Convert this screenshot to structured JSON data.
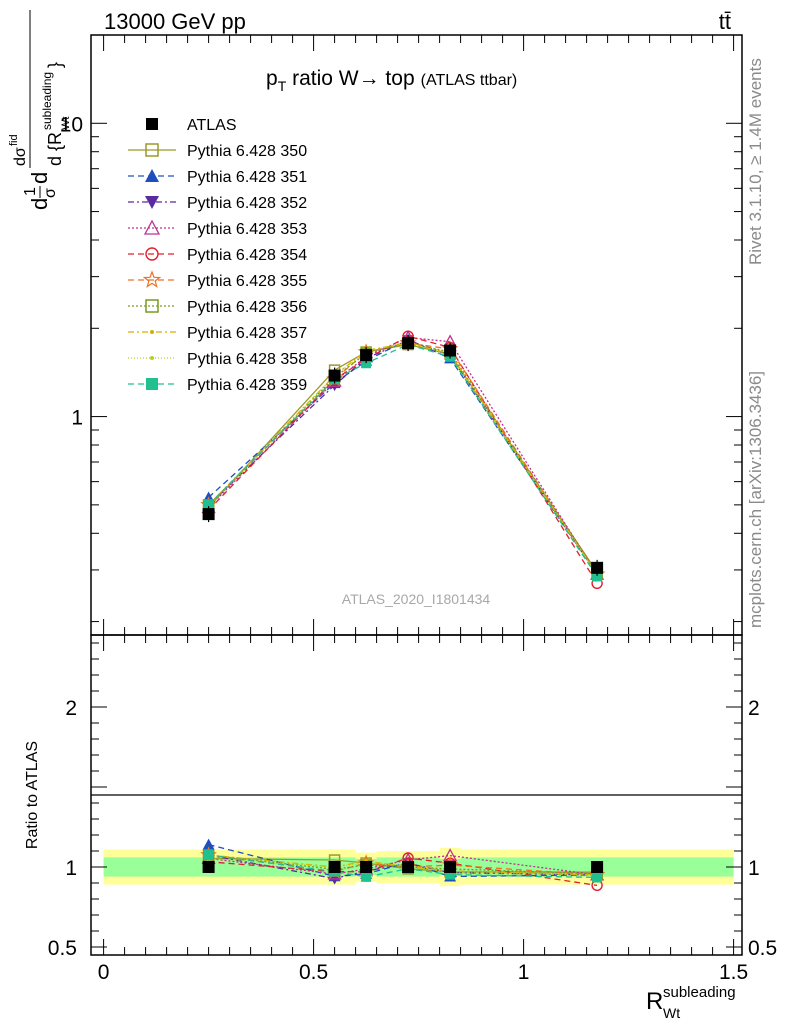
{
  "header": {
    "left": "13000 GeV pp",
    "right": "tt̄"
  },
  "side_labels": {
    "rivet": "Rivet 3.1.10, ≥ 1.4M events",
    "mcplots": "mcplots.cern.ch [arXiv:1306.3436]"
  },
  "watermark": "ATLAS_2020_I1801434",
  "colors": {
    "band_inner": "#99ff99",
    "band_outer": "#ffff99"
  },
  "chart_data": [
    {
      "type": "line",
      "title": "p_T ratio W→ top (ATLAS ttbar)",
      "title_parts": {
        "p": "p",
        "sub": "T",
        "main": " ratio W→ top",
        "small": "(ATLAS ttbar)"
      },
      "ylabel": "1/σ dσ^fid / d{R_Wt^subleading}",
      "yscale": "log",
      "ylim": [
        0.18,
        20
      ],
      "xlim": [
        -0.03,
        1.52
      ],
      "yticks": [
        1,
        10
      ],
      "ytick_labels": [
        "1",
        "10"
      ],
      "x": [
        0.25,
        0.55,
        0.625,
        0.725,
        0.825,
        1.175
      ],
      "series": [
        {
          "name": "ATLAS",
          "color": "#000000",
          "marker": "square-filled",
          "dash": "none",
          "values": [
            0.465,
            1.38,
            1.62,
            1.78,
            1.68,
            0.305
          ]
        },
        {
          "name": "Pythia 6.428 350",
          "color": "#9a9a2a",
          "marker": "square-open",
          "dash": "solid",
          "values": [
            0.49,
            1.44,
            1.66,
            1.76,
            1.63,
            0.295
          ]
        },
        {
          "name": "Pythia 6.428 351",
          "color": "#1f4fbf",
          "marker": "triangle-up",
          "dash": "6,4",
          "values": [
            0.53,
            1.3,
            1.55,
            1.83,
            1.58,
            0.29
          ]
        },
        {
          "name": "Pythia 6.428 352",
          "color": "#5a2aa0",
          "marker": "triangle-down",
          "dash": "6,3,2,3",
          "values": [
            0.5,
            1.28,
            1.58,
            1.82,
            1.62,
            0.29
          ]
        },
        {
          "name": "Pythia 6.428 353",
          "color": "#c0308f",
          "marker": "triangle-open",
          "dash": "2,2",
          "values": [
            0.49,
            1.32,
            1.6,
            1.86,
            1.8,
            0.29
          ]
        },
        {
          "name": "Pythia 6.428 354",
          "color": "#e0202f",
          "marker": "circle-open",
          "dash": "6,4",
          "values": [
            0.48,
            1.34,
            1.57,
            1.88,
            1.72,
            0.27
          ]
        },
        {
          "name": "Pythia 6.428 355",
          "color": "#f07020",
          "marker": "star-open",
          "dash": "6,4",
          "values": [
            0.5,
            1.34,
            1.66,
            1.78,
            1.7,
            0.29
          ]
        },
        {
          "name": "Pythia 6.428 356",
          "color": "#7a9a20",
          "marker": "square-open",
          "dash": "2,2",
          "values": [
            0.5,
            1.36,
            1.64,
            1.78,
            1.66,
            0.292
          ]
        },
        {
          "name": "Pythia 6.428 357",
          "color": "#d8b000",
          "marker": "dot",
          "dash": "6,3,2,3",
          "values": [
            0.5,
            1.38,
            1.68,
            1.78,
            1.64,
            0.29
          ]
        },
        {
          "name": "Pythia 6.428 358",
          "color": "#b8d020",
          "marker": "dot",
          "dash": "1,2",
          "values": [
            0.49,
            1.38,
            1.66,
            1.8,
            1.62,
            0.29
          ]
        },
        {
          "name": "Pythia 6.428 359",
          "color": "#20c090",
          "marker": "square-filled",
          "dash": "6,4",
          "values": [
            0.5,
            1.34,
            1.52,
            1.76,
            1.6,
            0.285
          ]
        }
      ]
    },
    {
      "type": "line",
      "ylabel": "Ratio to ATLAS",
      "xlabel": "R_Wt^subleading",
      "ylim": [
        0.45,
        2.45
      ],
      "xlim": [
        -0.03,
        1.52
      ],
      "yticks": [
        0.5,
        1,
        2
      ],
      "ytick_labels": [
        "0.5",
        "1",
        "2"
      ],
      "xticks": [
        0,
        0.5,
        1,
        1.5
      ],
      "xtick_labels": [
        "0",
        "0.5",
        "1",
        "1.5"
      ],
      "band_bins": [
        0.0,
        0.6,
        0.65,
        0.8,
        0.85,
        1.5
      ],
      "band_inner": [
        0.06,
        0.05,
        0.06,
        0.05,
        0.06
      ],
      "band_outer": [
        0.11,
        0.09,
        0.1,
        0.12,
        0.11
      ]
    }
  ]
}
